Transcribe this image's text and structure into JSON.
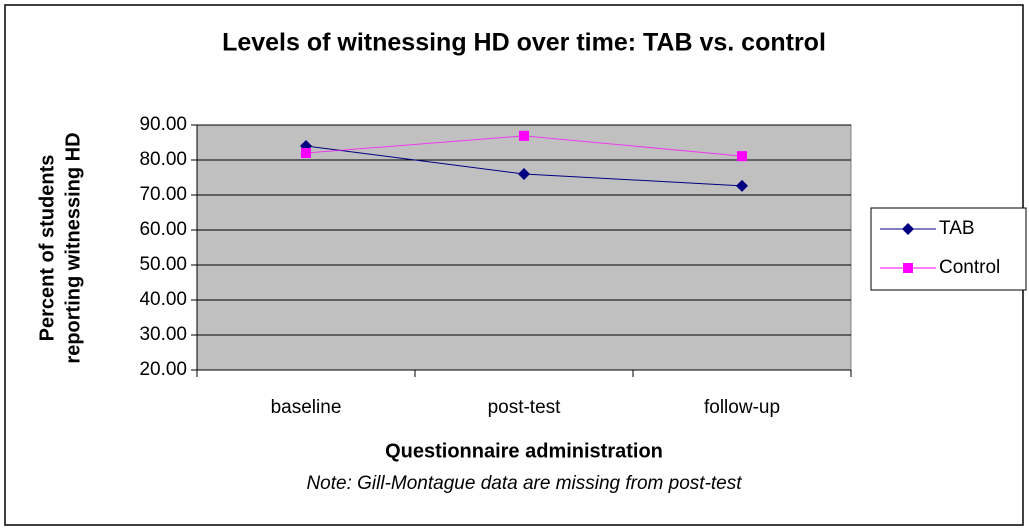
{
  "chart_data": {
    "type": "line",
    "title": "Levels of witnessing HD over time: TAB vs. control",
    "y_label": [
      "Percent of students",
      "reporting witnessing HD"
    ],
    "x_label": "Questionnaire administration",
    "note": "Note: Gill-Montague data are missing from post-test",
    "categories": [
      "baseline",
      "post-test",
      "follow-up"
    ],
    "series": [
      {
        "name": "TAB",
        "color": "#000080",
        "marker": "diamond",
        "values": [
          84,
          76,
          72.6
        ]
      },
      {
        "name": "Control",
        "color": "#ff00ff",
        "marker": "square",
        "values": [
          82,
          86.9,
          81.1
        ]
      }
    ],
    "ylim": [
      20,
      90
    ],
    "yticks": [
      {
        "value": 20,
        "label": "20.00"
      },
      {
        "value": 30,
        "label": "30.00"
      },
      {
        "value": 40,
        "label": "40.00"
      },
      {
        "value": 50,
        "label": "50.00"
      },
      {
        "value": 60,
        "label": "60.00"
      },
      {
        "value": 70,
        "label": "70.00"
      },
      {
        "value": 80,
        "label": "80.00"
      },
      {
        "value": 90,
        "label": "90.00"
      }
    ],
    "grid": true,
    "legend": "right"
  }
}
